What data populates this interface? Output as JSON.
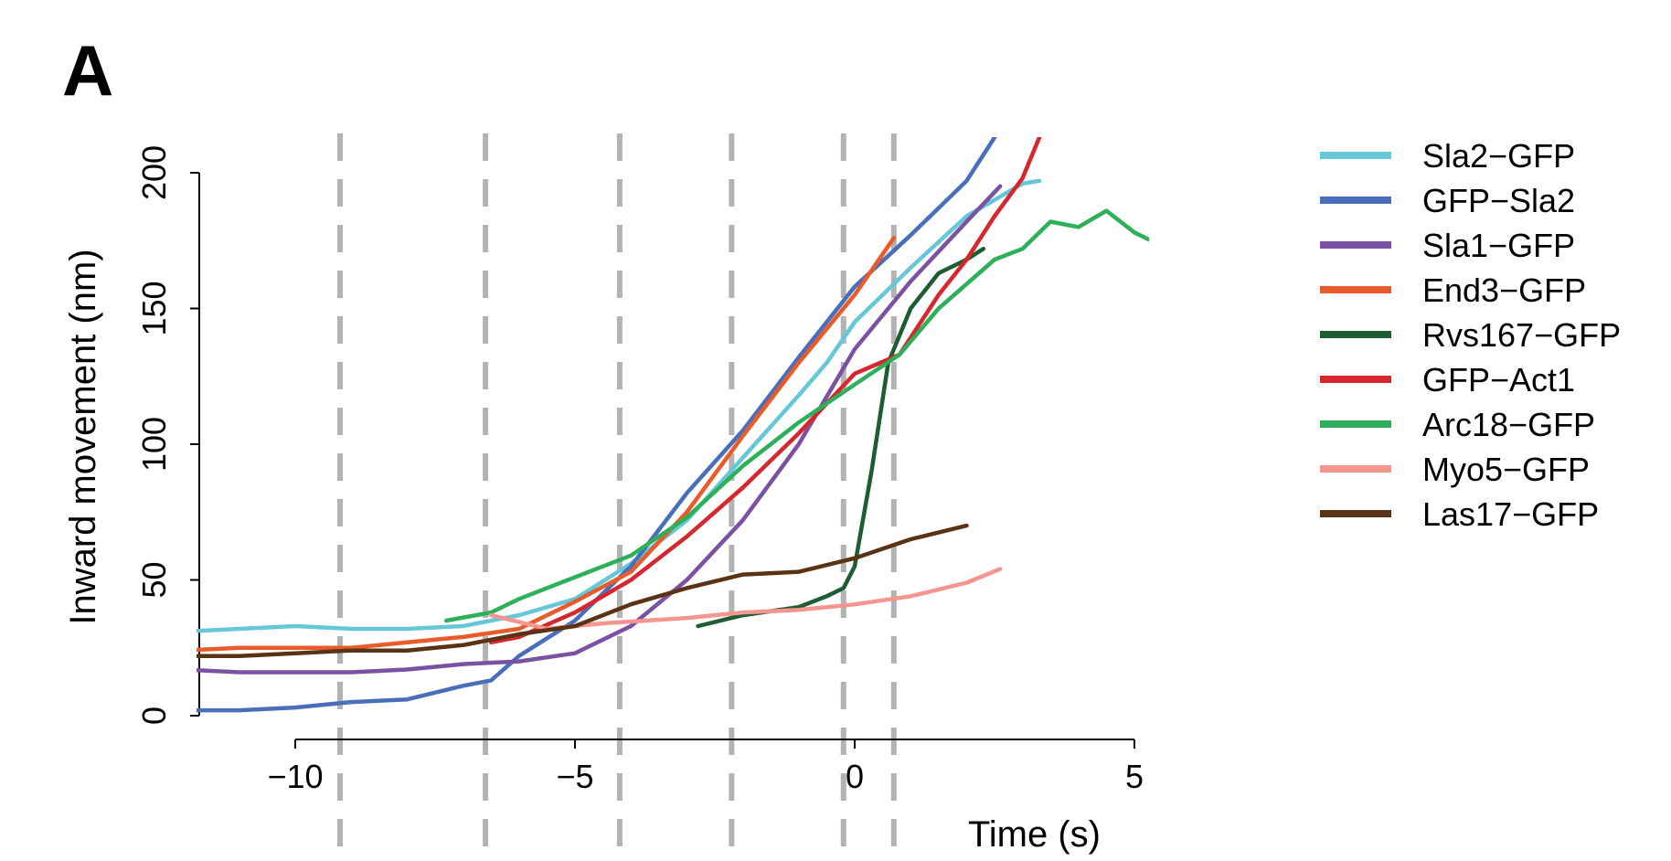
{
  "panel_label": "A",
  "chart_data": {
    "type": "line",
    "xlabel": "Time (s)",
    "ylabel": "Inward movement (nm)",
    "xlim": [
      -12,
      5.5
    ],
    "ylim": [
      0,
      200
    ],
    "xticks": [
      -10,
      -5,
      0,
      5
    ],
    "yticks": [
      0,
      50,
      100,
      150,
      200
    ],
    "xtick_labels": [
      "−10",
      "−5",
      "0",
      "5"
    ],
    "ytick_labels": [
      "0",
      "50",
      "100",
      "150",
      "200"
    ],
    "grid": false,
    "legend_position": "top-right",
    "vlines": [
      -9.2,
      -6.6,
      -4.2,
      -2.2,
      -0.2,
      0.7
    ],
    "vline_color": "#b3b3b3",
    "series": [
      {
        "name": "Sla2−GFP",
        "color": "#66c7d9",
        "points": [
          [
            -12,
            31
          ],
          [
            -11,
            32
          ],
          [
            -10,
            33
          ],
          [
            -9,
            32
          ],
          [
            -8,
            32
          ],
          [
            -7,
            33
          ],
          [
            -6,
            37
          ],
          [
            -5,
            43
          ],
          [
            -4,
            56
          ],
          [
            -3,
            72
          ],
          [
            -2,
            95
          ],
          [
            -1,
            118
          ],
          [
            -0.5,
            130
          ],
          [
            0,
            145
          ],
          [
            1,
            165
          ],
          [
            2,
            184
          ],
          [
            3,
            196
          ],
          [
            3.3,
            197
          ]
        ]
      },
      {
        "name": "GFP−Sla2",
        "color": "#4a6fba",
        "points": [
          [
            -12,
            2
          ],
          [
            -11,
            2
          ],
          [
            -10,
            3
          ],
          [
            -9,
            5
          ],
          [
            -8,
            6
          ],
          [
            -7,
            11
          ],
          [
            -6.5,
            13
          ],
          [
            -6,
            22
          ],
          [
            -5,
            35
          ],
          [
            -4,
            55
          ],
          [
            -3,
            82
          ],
          [
            -2,
            105
          ],
          [
            -1,
            132
          ],
          [
            0,
            158
          ],
          [
            1,
            177
          ],
          [
            2,
            197
          ],
          [
            2.5,
            213
          ]
        ]
      },
      {
        "name": "Sla1−GFP",
        "color": "#7b52a3",
        "points": [
          [
            -12,
            17
          ],
          [
            -11,
            16
          ],
          [
            -10,
            16
          ],
          [
            -9,
            16
          ],
          [
            -8,
            17
          ],
          [
            -7,
            19
          ],
          [
            -6,
            20
          ],
          [
            -5,
            23
          ],
          [
            -4,
            33
          ],
          [
            -3,
            50
          ],
          [
            -2,
            72
          ],
          [
            -1,
            100
          ],
          [
            0,
            135
          ],
          [
            1,
            160
          ],
          [
            2,
            182
          ],
          [
            2.6,
            195
          ]
        ]
      },
      {
        "name": "End3−GFP",
        "color": "#ea5b2b",
        "points": [
          [
            -12,
            24
          ],
          [
            -11,
            25
          ],
          [
            -10,
            25
          ],
          [
            -9,
            25
          ],
          [
            -8,
            27
          ],
          [
            -7,
            29
          ],
          [
            -6,
            32
          ],
          [
            -5,
            42
          ],
          [
            -4,
            53
          ],
          [
            -3,
            75
          ],
          [
            -2,
            103
          ],
          [
            -1,
            130
          ],
          [
            0,
            155
          ],
          [
            0.7,
            176
          ]
        ]
      },
      {
        "name": "Rvs167−GFP",
        "color": "#1e5c32",
        "points": [
          [
            -2.8,
            33
          ],
          [
            -2,
            37
          ],
          [
            -1,
            40
          ],
          [
            -0.5,
            44
          ],
          [
            -0.2,
            47
          ],
          [
            0,
            55
          ],
          [
            0.3,
            90
          ],
          [
            0.6,
            130
          ],
          [
            1,
            150
          ],
          [
            1.5,
            163
          ],
          [
            2,
            168
          ],
          [
            2.3,
            172
          ]
        ]
      },
      {
        "name": "GFP−Act1",
        "color": "#d6262e",
        "points": [
          [
            -6.5,
            27
          ],
          [
            -6,
            29
          ],
          [
            -5,
            38
          ],
          [
            -4,
            50
          ],
          [
            -3,
            66
          ],
          [
            -2,
            84
          ],
          [
            -1,
            104
          ],
          [
            0,
            126
          ],
          [
            0.8,
            133
          ],
          [
            1.5,
            155
          ],
          [
            2,
            168
          ],
          [
            2.5,
            184
          ],
          [
            3,
            198
          ],
          [
            3.3,
            213
          ]
        ]
      },
      {
        "name": "Arc18−GFP",
        "color": "#2eb05a",
        "points": [
          [
            -7.3,
            35
          ],
          [
            -6.5,
            38
          ],
          [
            -6,
            43
          ],
          [
            -5,
            51
          ],
          [
            -4,
            59
          ],
          [
            -3,
            73
          ],
          [
            -2,
            92
          ],
          [
            -1,
            108
          ],
          [
            0,
            122
          ],
          [
            0.8,
            133
          ],
          [
            1.5,
            150
          ],
          [
            2.5,
            168
          ],
          [
            3,
            172
          ],
          [
            3.5,
            182
          ],
          [
            4,
            180
          ],
          [
            4.5,
            186
          ],
          [
            5,
            178
          ],
          [
            5.3,
            175
          ]
        ]
      },
      {
        "name": "Myo5−GFP",
        "color": "#f4958f",
        "points": [
          [
            -6.5,
            37
          ],
          [
            -5.5,
            32
          ],
          [
            -4.5,
            34
          ],
          [
            -3,
            36
          ],
          [
            -2,
            38
          ],
          [
            -1,
            39
          ],
          [
            0,
            41
          ],
          [
            1,
            44
          ],
          [
            2,
            49
          ],
          [
            2.6,
            54
          ]
        ]
      },
      {
        "name": "Las17−GFP",
        "color": "#5a3315",
        "points": [
          [
            -12,
            22
          ],
          [
            -11,
            22
          ],
          [
            -10,
            23
          ],
          [
            -9,
            24
          ],
          [
            -8,
            24
          ],
          [
            -7,
            26
          ],
          [
            -6,
            30
          ],
          [
            -5,
            33
          ],
          [
            -4,
            41
          ],
          [
            -3,
            47
          ],
          [
            -2,
            52
          ],
          [
            -1,
            53
          ],
          [
            0,
            58
          ],
          [
            1,
            65
          ],
          [
            2,
            70
          ]
        ]
      }
    ]
  }
}
